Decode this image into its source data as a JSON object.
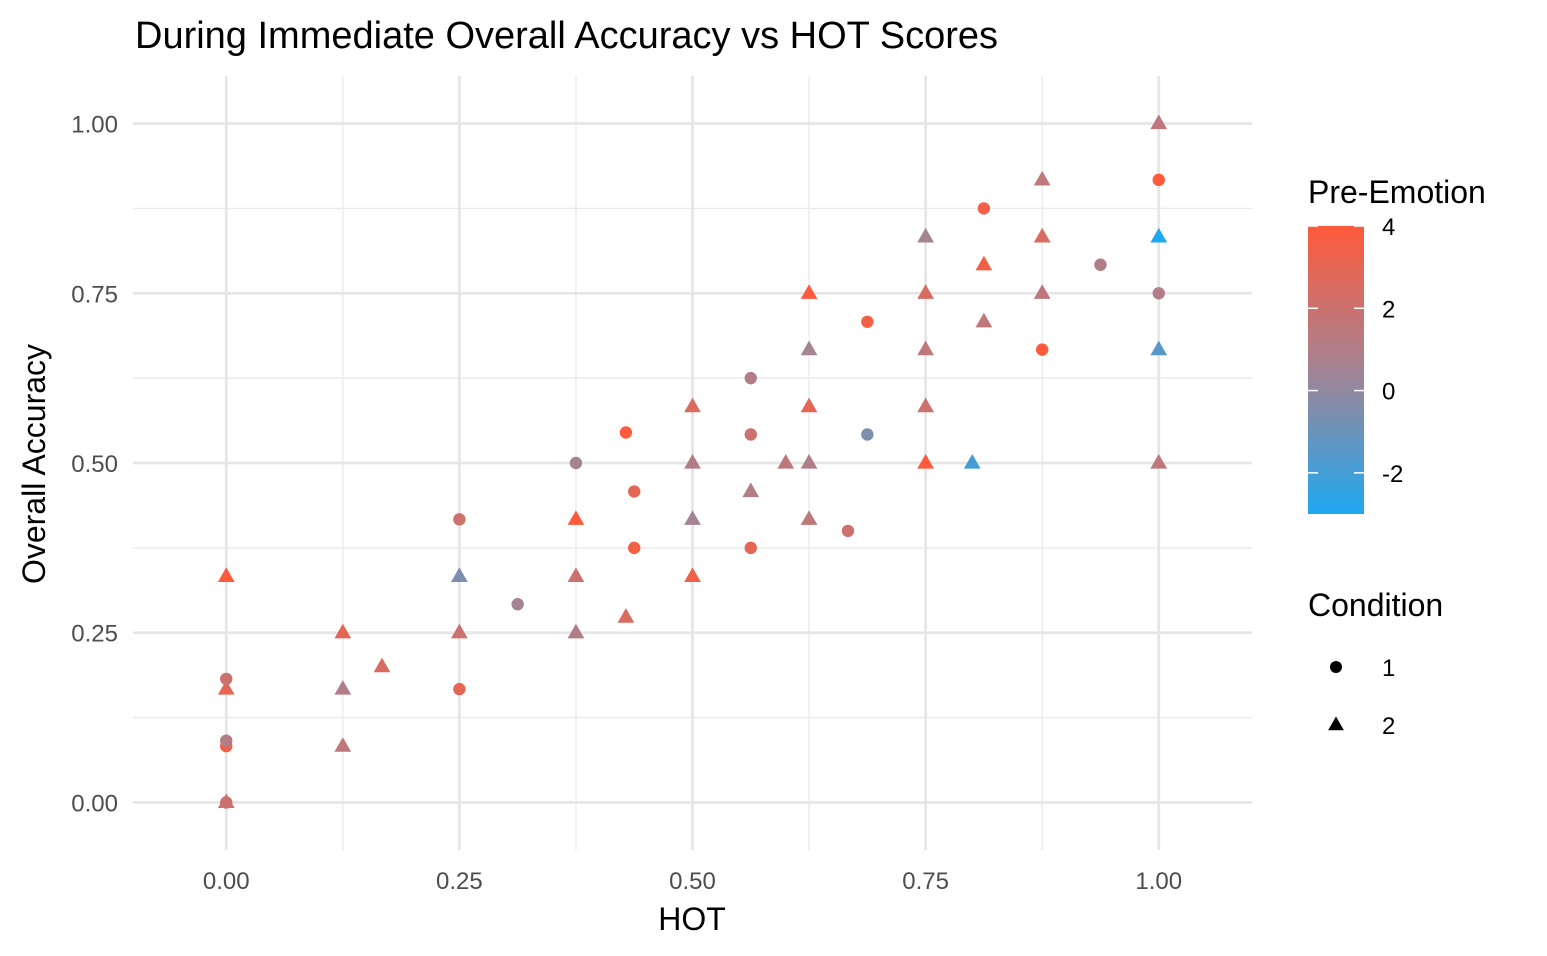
{
  "chart_data": {
    "type": "scatter",
    "title": "During Immediate Overall Accuracy vs HOT Scores",
    "xlabel": "HOT",
    "ylabel": "Overall Accuracy",
    "xlim": [
      -0.1,
      1.1
    ],
    "ylim": [
      -0.07,
      1.07
    ],
    "x_ticks": [
      "0.00",
      "0.25",
      "0.50",
      "0.75",
      "1.00"
    ],
    "y_ticks": [
      "0.00",
      "0.25",
      "0.50",
      "0.75",
      "1.00"
    ],
    "grid": true,
    "legend_position": "right",
    "color_legend": {
      "title": "Pre-Emotion",
      "min": -3,
      "max": 4,
      "ticks": [
        "4",
        "2",
        "0",
        "-2"
      ],
      "low_color": "#1ea8f0",
      "mid_color": "#a48393",
      "high_color": "#ff5a3c"
    },
    "shape_legend": {
      "title": "Condition",
      "entries": [
        {
          "label": "1",
          "shape": "circle"
        },
        {
          "label": "2",
          "shape": "triangle"
        }
      ]
    },
    "points": [
      {
        "x": 0.0,
        "y": 0.0,
        "c": 2,
        "s": 1
      },
      {
        "x": 0.0,
        "y": 0.0,
        "c": 2,
        "s": 2
      },
      {
        "x": 0.0,
        "y": 0.083,
        "c": 3.5,
        "s": 1
      },
      {
        "x": 0.0,
        "y": 0.091,
        "c": 1,
        "s": 1
      },
      {
        "x": 0.0,
        "y": 0.167,
        "c": 3,
        "s": 2
      },
      {
        "x": 0.0,
        "y": 0.182,
        "c": 2,
        "s": 1
      },
      {
        "x": 0.0,
        "y": 0.333,
        "c": 4,
        "s": 2
      },
      {
        "x": 0.125,
        "y": 0.083,
        "c": 1.5,
        "s": 2
      },
      {
        "x": 0.125,
        "y": 0.167,
        "c": 1,
        "s": 2
      },
      {
        "x": 0.125,
        "y": 0.25,
        "c": 3,
        "s": 2
      },
      {
        "x": 0.167,
        "y": 0.2,
        "c": 2.5,
        "s": 2
      },
      {
        "x": 0.25,
        "y": 0.167,
        "c": 3,
        "s": 1
      },
      {
        "x": 0.25,
        "y": 0.25,
        "c": 2,
        "s": 2
      },
      {
        "x": 0.25,
        "y": 0.333,
        "c": -0.5,
        "s": 2
      },
      {
        "x": 0.25,
        "y": 0.417,
        "c": 2,
        "s": 1
      },
      {
        "x": 0.3125,
        "y": 0.292,
        "c": 0.5,
        "s": 1
      },
      {
        "x": 0.375,
        "y": 0.25,
        "c": 1,
        "s": 2
      },
      {
        "x": 0.375,
        "y": 0.333,
        "c": 2,
        "s": 2
      },
      {
        "x": 0.375,
        "y": 0.417,
        "c": 4,
        "s": 2
      },
      {
        "x": 0.375,
        "y": 0.5,
        "c": 0.5,
        "s": 1
      },
      {
        "x": 0.4286,
        "y": 0.273,
        "c": 2.5,
        "s": 2
      },
      {
        "x": 0.4286,
        "y": 0.545,
        "c": 4,
        "s": 1
      },
      {
        "x": 0.4375,
        "y": 0.375,
        "c": 3.5,
        "s": 1
      },
      {
        "x": 0.4375,
        "y": 0.458,
        "c": 3,
        "s": 1
      },
      {
        "x": 0.5,
        "y": 0.333,
        "c": 3.5,
        "s": 2
      },
      {
        "x": 0.5,
        "y": 0.417,
        "c": 0.5,
        "s": 2
      },
      {
        "x": 0.5,
        "y": 0.5,
        "c": 1,
        "s": 2
      },
      {
        "x": 0.5,
        "y": 0.583,
        "c": 2.5,
        "s": 2
      },
      {
        "x": 0.5625,
        "y": 0.375,
        "c": 3,
        "s": 1
      },
      {
        "x": 0.5625,
        "y": 0.458,
        "c": 1,
        "s": 2
      },
      {
        "x": 0.5625,
        "y": 0.542,
        "c": 2,
        "s": 1
      },
      {
        "x": 0.5625,
        "y": 0.625,
        "c": 1,
        "s": 1
      },
      {
        "x": 0.6,
        "y": 0.5,
        "c": 1.5,
        "s": 2
      },
      {
        "x": 0.625,
        "y": 0.417,
        "c": 1.5,
        "s": 2
      },
      {
        "x": 0.625,
        "y": 0.5,
        "c": 1,
        "s": 2
      },
      {
        "x": 0.625,
        "y": 0.583,
        "c": 3,
        "s": 2
      },
      {
        "x": 0.625,
        "y": 0.667,
        "c": 0.5,
        "s": 2
      },
      {
        "x": 0.625,
        "y": 0.75,
        "c": 4,
        "s": 2
      },
      {
        "x": 0.6667,
        "y": 0.4,
        "c": 2,
        "s": 1
      },
      {
        "x": 0.6875,
        "y": 0.542,
        "c": -0.5,
        "s": 1
      },
      {
        "x": 0.6875,
        "y": 0.708,
        "c": 3.5,
        "s": 1
      },
      {
        "x": 0.75,
        "y": 0.5,
        "c": 4,
        "s": 2
      },
      {
        "x": 0.75,
        "y": 0.583,
        "c": 2,
        "s": 2
      },
      {
        "x": 0.75,
        "y": 0.667,
        "c": 1.5,
        "s": 2
      },
      {
        "x": 0.75,
        "y": 0.75,
        "c": 2.5,
        "s": 2
      },
      {
        "x": 0.75,
        "y": 0.833,
        "c": 0.5,
        "s": 2
      },
      {
        "x": 0.8,
        "y": 0.5,
        "c": -2,
        "s": 2
      },
      {
        "x": 0.8125,
        "y": 0.708,
        "c": 1.5,
        "s": 2
      },
      {
        "x": 0.8125,
        "y": 0.792,
        "c": 3.5,
        "s": 2
      },
      {
        "x": 0.8125,
        "y": 0.875,
        "c": 3.5,
        "s": 1
      },
      {
        "x": 0.875,
        "y": 0.667,
        "c": 4,
        "s": 1
      },
      {
        "x": 0.875,
        "y": 0.75,
        "c": 1.5,
        "s": 2
      },
      {
        "x": 0.875,
        "y": 0.833,
        "c": 2.5,
        "s": 2
      },
      {
        "x": 0.875,
        "y": 0.917,
        "c": 1.5,
        "s": 2
      },
      {
        "x": 0.9375,
        "y": 0.792,
        "c": 1,
        "s": 1
      },
      {
        "x": 1.0,
        "y": 0.5,
        "c": 1.5,
        "s": 2
      },
      {
        "x": 1.0,
        "y": 0.667,
        "c": -1.5,
        "s": 2
      },
      {
        "x": 1.0,
        "y": 0.75,
        "c": 1,
        "s": 1
      },
      {
        "x": 1.0,
        "y": 0.833,
        "c": -3,
        "s": 2
      },
      {
        "x": 1.0,
        "y": 0.917,
        "c": 4,
        "s": 1
      },
      {
        "x": 1.0,
        "y": 1.0,
        "c": 1.5,
        "s": 2
      }
    ]
  }
}
